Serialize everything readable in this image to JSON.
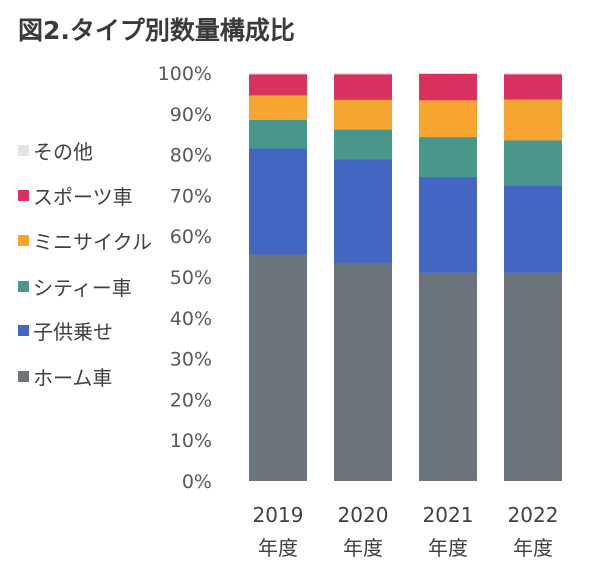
{
  "chart_data": {
    "type": "bar",
    "stacked": true,
    "title": "図2.タイプ別数量構成比",
    "categories": [
      [
        "2019",
        "年度"
      ],
      [
        "2020",
        "年度"
      ],
      [
        "2021",
        "年度"
      ],
      [
        "2022",
        "年度"
      ]
    ],
    "ylim": [
      0,
      100
    ],
    "yticks": [
      0,
      10,
      20,
      30,
      40,
      50,
      60,
      70,
      80,
      90,
      100
    ],
    "ytick_labels": [
      "0%",
      "10%",
      "20%",
      "30%",
      "40%",
      "50%",
      "60%",
      "70%",
      "80%",
      "90%",
      "100%"
    ],
    "legend_position": "left",
    "series": [
      {
        "name": "ホーム車",
        "color": "#6b747b",
        "values": [
          55.5,
          53.3,
          51.0,
          51.0
        ]
      },
      {
        "name": "子供乗せ",
        "color": "#4266c1",
        "values": [
          26.0,
          25.5,
          23.5,
          21.5
        ]
      },
      {
        "name": "シティー車",
        "color": "#48978a",
        "values": [
          7.0,
          7.4,
          9.8,
          11.0
        ]
      },
      {
        "name": "ミニサイクル",
        "color": "#f7a530",
        "values": [
          6.0,
          7.2,
          9.0,
          10.0
        ]
      },
      {
        "name": "スポーツ車",
        "color": "#d9325e",
        "values": [
          5.2,
          6.3,
          6.5,
          6.2
        ]
      },
      {
        "name": "その他",
        "color": "#e4e4e4",
        "values": [
          0.3,
          0.3,
          0.2,
          0.3
        ]
      }
    ],
    "legend_order": [
      "その他",
      "スポーツ車",
      "ミニサイクル",
      "シティー車",
      "子供乗せ",
      "ホーム車"
    ]
  }
}
